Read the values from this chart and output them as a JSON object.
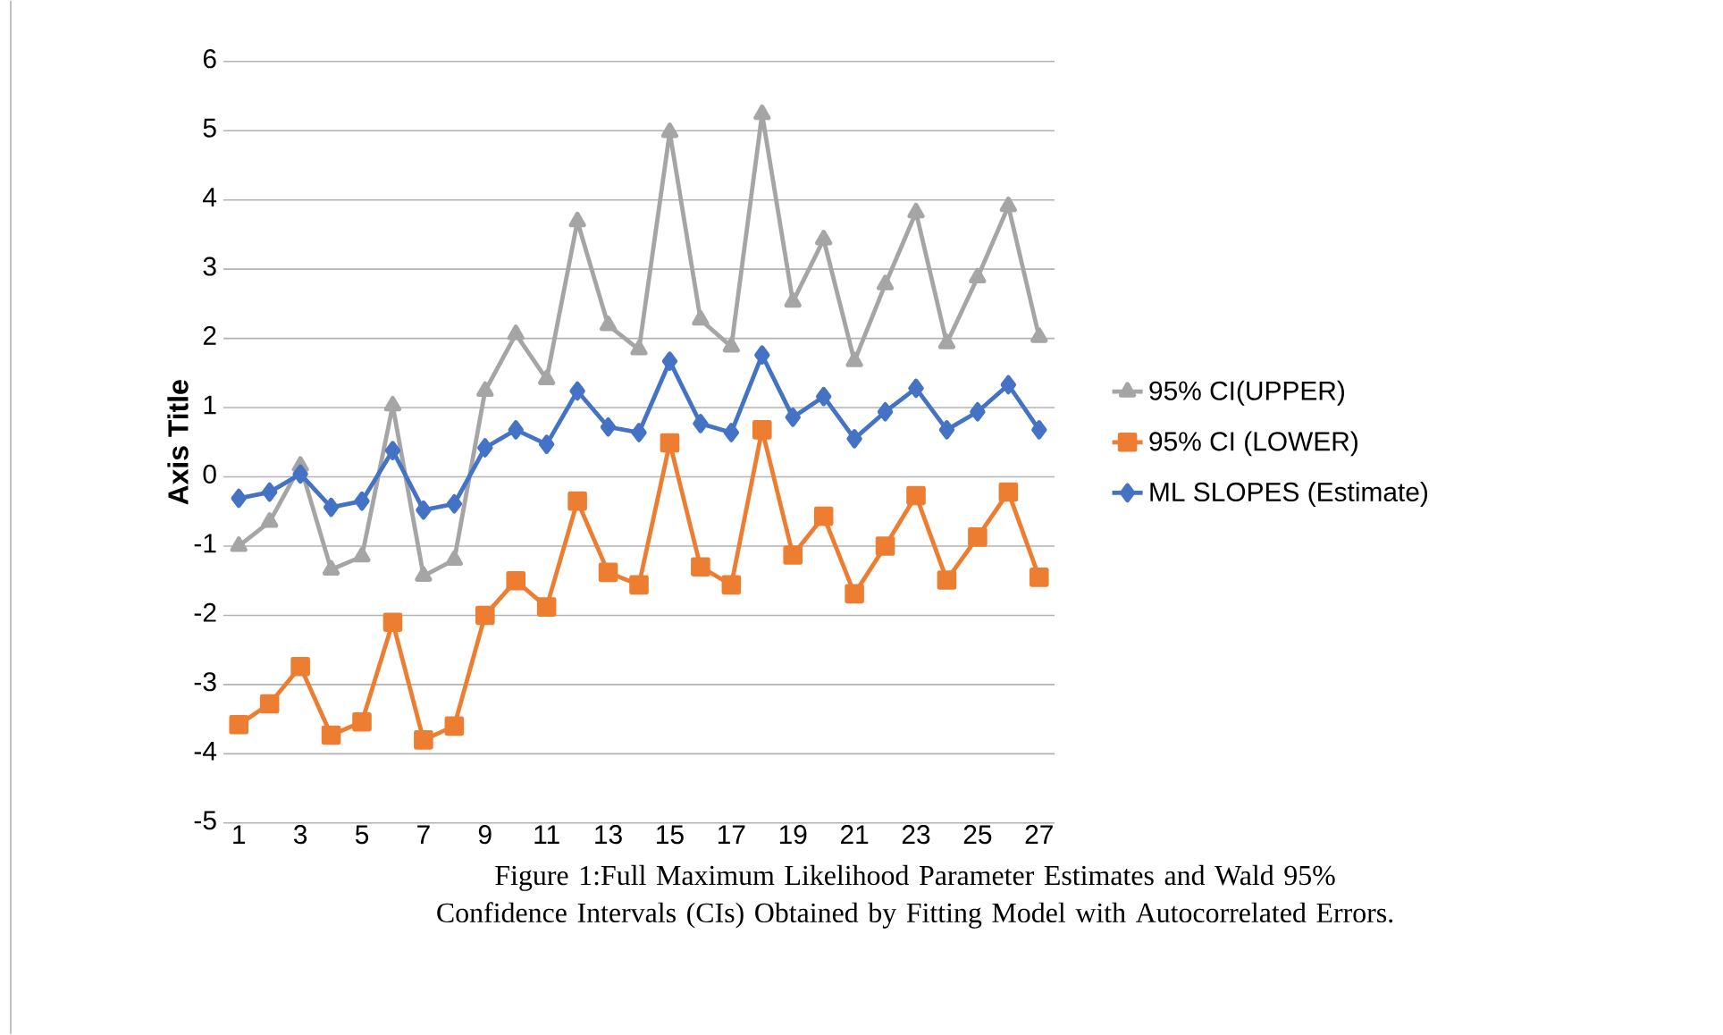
{
  "chart_data": {
    "type": "line",
    "ylabel": "Axis Title",
    "categories": [
      "1",
      null,
      "3",
      null,
      "5",
      null,
      "7",
      null,
      "9",
      null,
      "11",
      null,
      "13",
      null,
      "15",
      null,
      "17",
      null,
      "19",
      null,
      "21",
      null,
      "23",
      null,
      "25",
      null,
      "27"
    ],
    "series": [
      {
        "name": "95% CI(UPPER)",
        "color": "#a5a5a5",
        "marker": "triangle",
        "values": [
          -1.0,
          -0.65,
          0.16,
          -1.34,
          -1.15,
          1.03,
          -1.43,
          -1.2,
          1.24,
          2.06,
          1.41,
          3.69,
          2.19,
          1.84,
          4.98,
          2.27,
          1.88,
          5.24,
          2.53,
          3.43,
          1.67,
          2.78,
          3.82,
          1.93,
          2.88,
          3.91,
          2.02
        ]
      },
      {
        "name": "95% CI (LOWER)",
        "color": "#ed7d31",
        "marker": "square",
        "values": [
          -3.58,
          -3.28,
          -2.74,
          -3.73,
          -3.54,
          -2.1,
          -3.8,
          -3.6,
          -2.0,
          -1.5,
          -1.88,
          -0.35,
          -1.38,
          -1.56,
          0.49,
          -1.3,
          -1.56,
          0.68,
          -1.13,
          -0.57,
          -1.69,
          -1.0,
          -0.27,
          -1.49,
          -0.87,
          -0.22,
          -1.45
        ]
      },
      {
        "name": "ML SLOPES (Estimate)",
        "color": "#4472c4",
        "marker": "diamond",
        "values": [
          -0.31,
          -0.22,
          0.04,
          -0.44,
          -0.35,
          0.38,
          -0.48,
          -0.39,
          0.42,
          0.68,
          0.47,
          1.24,
          0.72,
          0.64,
          1.67,
          0.77,
          0.64,
          1.76,
          0.86,
          1.16,
          0.55,
          0.94,
          1.28,
          0.68,
          0.94,
          1.33,
          0.68
        ]
      }
    ],
    "ylim": [
      -5,
      6
    ],
    "yticks": [
      -5,
      -4,
      -3,
      -2,
      -1,
      0,
      1,
      2,
      3,
      4,
      5,
      6
    ],
    "grid": "y",
    "legend": "right",
    "line_style": "solid",
    "annotations": [
      "Figure 1:Full Maximum Likelihood Parameter Estimates and Wald 95% Confidence Intervals (CIs) Obtained by Fitting Model with Autocorrelated Errors."
    ]
  }
}
